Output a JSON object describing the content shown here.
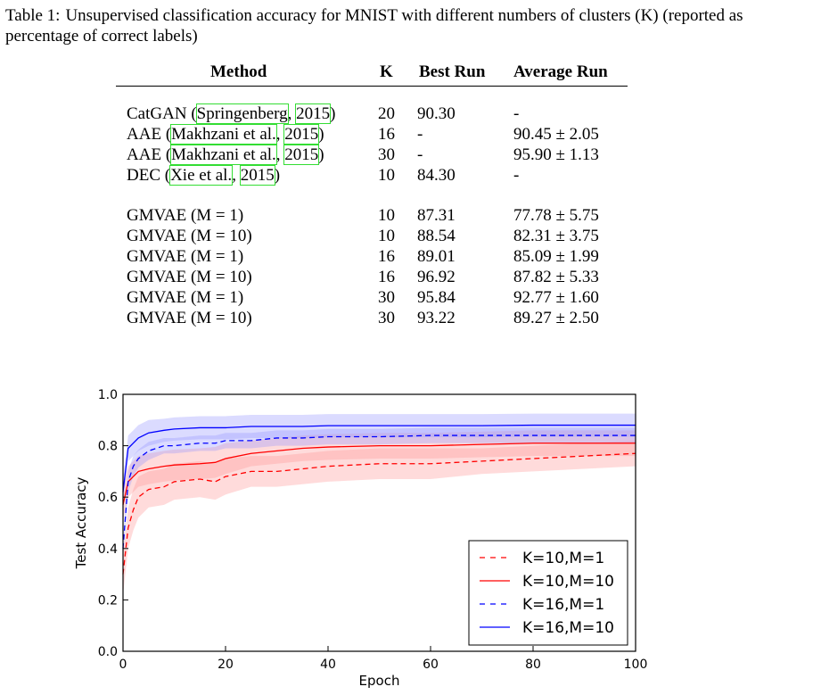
{
  "caption": {
    "label": "Table 1:",
    "text": "Unsupervised classification accuracy for MNIST with different numbers of clusters (K) (reported as percentage of correct labels)"
  },
  "table": {
    "headers": {
      "method": "Method",
      "k": "K",
      "best": "Best Run",
      "avg": "Average Run"
    },
    "group1": [
      {
        "name": "CatGAN",
        "open": " (",
        "cite_author": "Springenberg",
        "sep": ", ",
        "cite_year": "2015",
        "close": ")",
        "k": "20",
        "best": "90.30",
        "avg": "-"
      },
      {
        "name": "AAE",
        "open": " (",
        "cite_author": "Makhzani et al.",
        "sep": ", ",
        "cite_year": "2015",
        "close": ")",
        "k": "16",
        "best": "-",
        "avg": "90.45 ± 2.05"
      },
      {
        "name": "AAE",
        "open": " (",
        "cite_author": "Makhzani et al.",
        "sep": ", ",
        "cite_year": "2015",
        "close": ")",
        "k": "30",
        "best": "-",
        "avg": "95.90 ± 1.13"
      },
      {
        "name": "DEC",
        "open": " (",
        "cite_author": "Xie et al.",
        "sep": ", ",
        "cite_year": "2015",
        "close": ")",
        "k": "10",
        "best": "84.30",
        "avg": "-"
      }
    ],
    "group2": [
      {
        "method": "GMVAE (M = 1)",
        "k": "10",
        "best": "87.31",
        "avg": "77.78 ± 5.75"
      },
      {
        "method": "GMVAE (M = 10)",
        "k": "10",
        "best": "88.54",
        "avg": "82.31 ± 3.75"
      },
      {
        "method": "GMVAE (M = 1)",
        "k": "16",
        "best": "89.01",
        "avg": "85.09 ± 1.99"
      },
      {
        "method": "GMVAE (M = 10)",
        "k": "16",
        "best": "96.92",
        "avg": "87.82 ± 5.33"
      },
      {
        "method": "GMVAE (M = 1)",
        "k": "30",
        "best": "95.84",
        "avg": "92.77 ± 1.60"
      },
      {
        "method": "GMVAE (M = 10)",
        "k": "30",
        "best": "93.22",
        "avg": "89.27 ± 2.50"
      }
    ]
  },
  "chart_data": {
    "type": "line",
    "xlabel": "Epoch",
    "ylabel": "Test Accuracy",
    "xlim": [
      0,
      100
    ],
    "ylim": [
      0.0,
      1.0
    ],
    "xticks": [
      "0",
      "20",
      "40",
      "60",
      "80",
      "100"
    ],
    "yticks": [
      "0.0",
      "0.2",
      "0.4",
      "0.6",
      "0.8",
      "1.0"
    ],
    "legend_position": "lower-right",
    "grid": false,
    "x": [
      0,
      1,
      2,
      3,
      5,
      8,
      10,
      15,
      18,
      20,
      25,
      30,
      35,
      40,
      50,
      60,
      70,
      80,
      90,
      100
    ],
    "series": [
      {
        "name": "K=10,M=1",
        "color": "#ff0000",
        "dash": true,
        "values": [
          0.3,
          0.48,
          0.55,
          0.6,
          0.63,
          0.64,
          0.66,
          0.67,
          0.66,
          0.68,
          0.7,
          0.7,
          0.71,
          0.72,
          0.73,
          0.73,
          0.74,
          0.75,
          0.76,
          0.77
        ],
        "band": [
          0.08,
          0.08,
          0.08,
          0.08,
          0.07,
          0.07,
          0.07,
          0.07,
          0.07,
          0.07,
          0.06,
          0.06,
          0.06,
          0.06,
          0.06,
          0.06,
          0.05,
          0.05,
          0.05,
          0.05
        ]
      },
      {
        "name": "K=10,M=10",
        "color": "#ff0000",
        "dash": false,
        "values": [
          0.57,
          0.66,
          0.68,
          0.7,
          0.71,
          0.72,
          0.725,
          0.73,
          0.735,
          0.75,
          0.77,
          0.78,
          0.79,
          0.795,
          0.8,
          0.8,
          0.805,
          0.81,
          0.81,
          0.81
        ],
        "band": [
          0.06,
          0.06,
          0.06,
          0.06,
          0.06,
          0.06,
          0.06,
          0.06,
          0.06,
          0.06,
          0.05,
          0.05,
          0.05,
          0.05,
          0.05,
          0.05,
          0.05,
          0.05,
          0.05,
          0.05
        ]
      },
      {
        "name": "K=16,M=1",
        "color": "#0000ff",
        "dash": true,
        "values": [
          0.4,
          0.66,
          0.72,
          0.75,
          0.78,
          0.8,
          0.8,
          0.81,
          0.81,
          0.82,
          0.82,
          0.83,
          0.83,
          0.835,
          0.835,
          0.84,
          0.84,
          0.84,
          0.84,
          0.84
        ],
        "band": [
          0.04,
          0.04,
          0.04,
          0.035,
          0.035,
          0.03,
          0.03,
          0.03,
          0.03,
          0.03,
          0.03,
          0.03,
          0.03,
          0.03,
          0.03,
          0.03,
          0.03,
          0.03,
          0.03,
          0.03
        ]
      },
      {
        "name": "K=16,M=10",
        "color": "#0000ff",
        "dash": false,
        "values": [
          0.62,
          0.79,
          0.81,
          0.83,
          0.85,
          0.86,
          0.865,
          0.87,
          0.87,
          0.87,
          0.875,
          0.875,
          0.875,
          0.878,
          0.878,
          0.878,
          0.878,
          0.88,
          0.88,
          0.88
        ],
        "band": [
          0.05,
          0.05,
          0.05,
          0.05,
          0.05,
          0.045,
          0.045,
          0.045,
          0.045,
          0.045,
          0.045,
          0.045,
          0.045,
          0.045,
          0.045,
          0.045,
          0.045,
          0.045,
          0.045,
          0.045
        ]
      }
    ]
  }
}
